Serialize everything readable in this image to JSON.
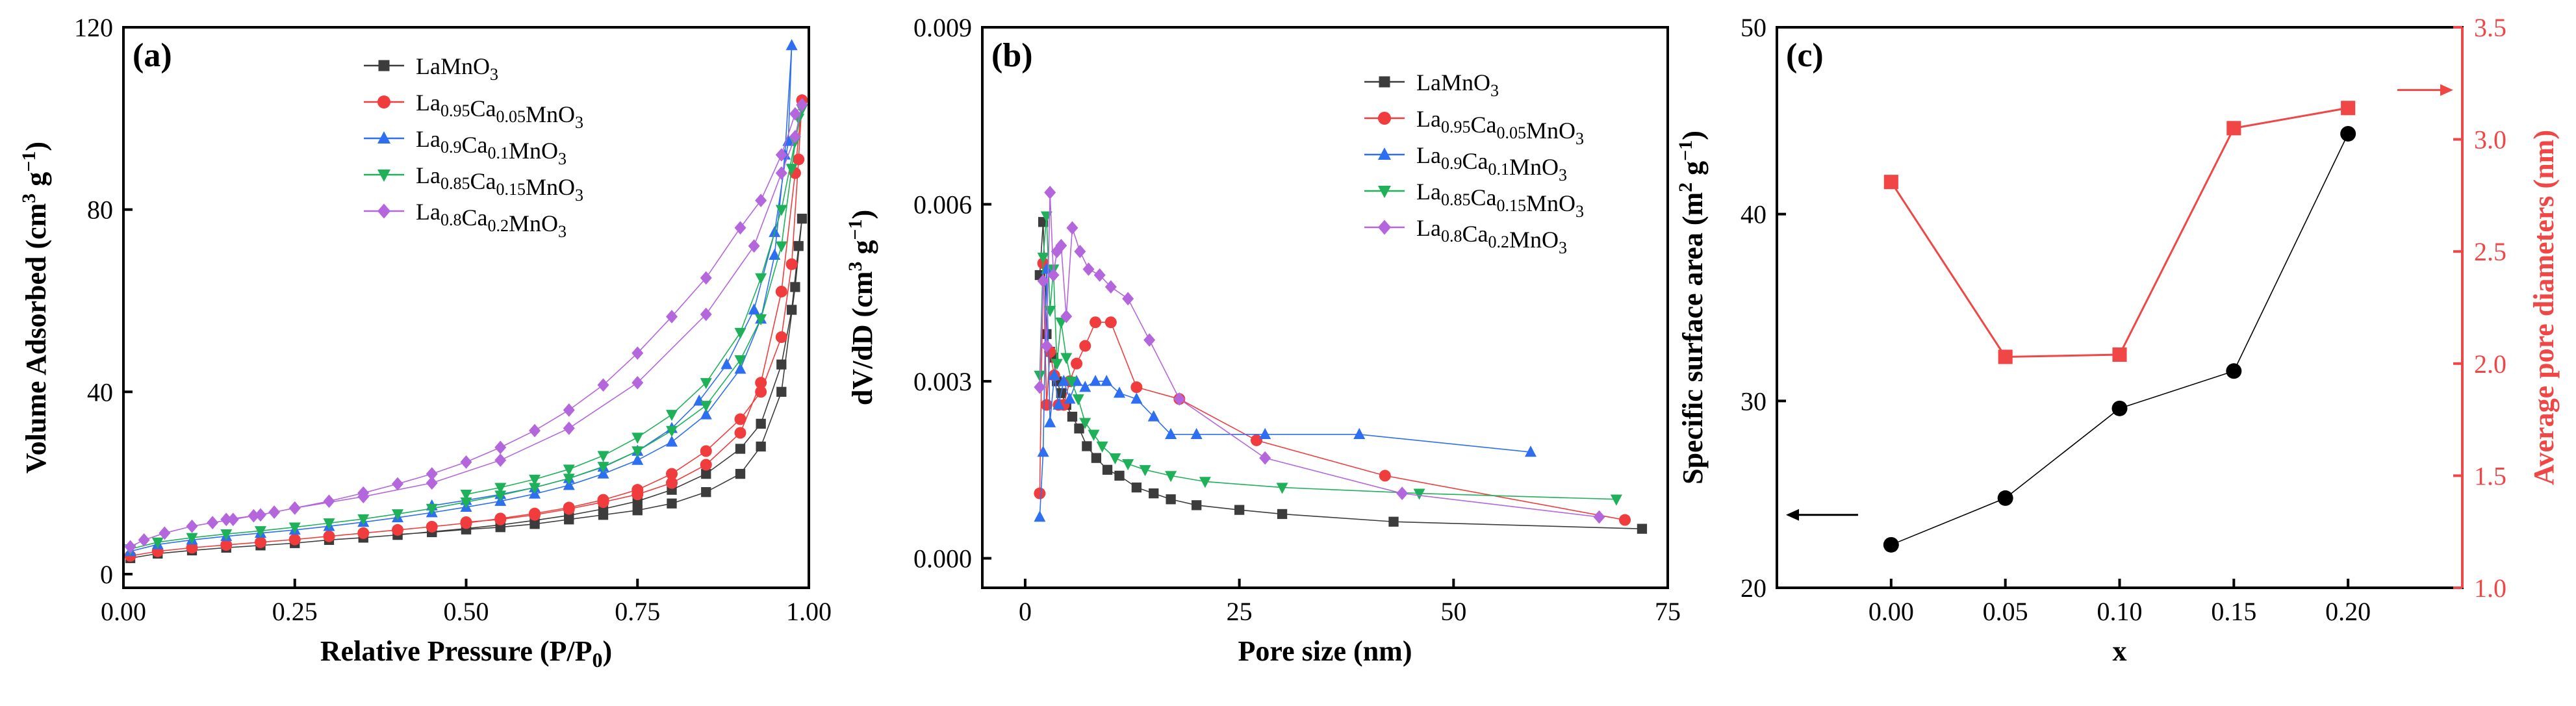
{
  "colors": {
    "black": "#000000",
    "red": "#f03c3c",
    "blue": "#2d6ff0",
    "green": "#1fb15a",
    "purple": "#b466dc",
    "gray": "#3c3c3c",
    "c_red": "#f04646"
  },
  "chart_data": [
    {
      "id": "a",
      "panel_label": "(a)",
      "type": "scatter",
      "title": "",
      "xlabel": "Relative Pressure (P/P",
      "xlabel_sub": "0",
      "xlabel_end": ")",
      "ylabel": "Volume Adsorbed (cm",
      "ylabel_sup": "3",
      "ylabel_mid": " g",
      "ylabel_sup2": "−1",
      "ylabel_end": ")",
      "xlim": [
        0,
        1.0
      ],
      "ylim": [
        -3,
        120
      ],
      "xticks": [
        0.0,
        0.25,
        0.5,
        0.75,
        1.0
      ],
      "xtick_labels": [
        "0.00",
        "0.25",
        "0.50",
        "0.75",
        "1.00"
      ],
      "yticks": [
        0,
        40,
        80,
        120
      ],
      "ytick_labels": [
        "0",
        "40",
        "80",
        "120"
      ],
      "legend_position": "top-middle",
      "series": [
        {
          "key": "s0",
          "marker": "square",
          "color_key": "gray",
          "name": "LaMnO",
          "legend_parts": [
            [
              "LaMnO",
              ""
            ],
            [
              "3",
              "sub"
            ]
          ],
          "x": [
            0.01,
            0.05,
            0.1,
            0.15,
            0.2,
            0.25,
            0.3,
            0.35,
            0.4,
            0.45,
            0.5,
            0.55,
            0.6,
            0.65,
            0.7,
            0.75,
            0.8,
            0.85,
            0.9,
            0.93,
            0.96,
            0.975,
            0.985,
            0.99,
            0.98,
            0.96,
            0.93,
            0.9,
            0.85,
            0.8,
            0.75,
            0.7,
            0.65,
            0.6,
            0.55,
            0.5,
            0.45,
            0.4
          ],
          "y": [
            3.5,
            4.5,
            5.2,
            5.8,
            6.3,
            6.8,
            7.5,
            8,
            8.6,
            9.3,
            10,
            10.8,
            11.8,
            12.9,
            14.3,
            16,
            18.5,
            22,
            27.5,
            33,
            46,
            58,
            72,
            78,
            63,
            40,
            28,
            22,
            18,
            15.5,
            14,
            13,
            12,
            11,
            10.3,
            9.8,
            9.2,
            8.7
          ],
          "tail_marker_start": 0
        },
        {
          "key": "s1",
          "marker": "circle",
          "color_key": "red",
          "name": "La0.95Ca0.05MnO3",
          "legend_parts": [
            [
              "La",
              ""
            ],
            [
              "0.95",
              "sub"
            ],
            [
              "Ca",
              ""
            ],
            [
              "0.05",
              "sub"
            ],
            [
              "MnO",
              ""
            ],
            [
              "3",
              "sub"
            ]
          ],
          "x": [
            0.01,
            0.05,
            0.1,
            0.15,
            0.2,
            0.25,
            0.3,
            0.35,
            0.4,
            0.45,
            0.5,
            0.55,
            0.6,
            0.65,
            0.7,
            0.75,
            0.8,
            0.85,
            0.9,
            0.93,
            0.96,
            0.975,
            0.985,
            0.99,
            0.98,
            0.96,
            0.93,
            0.9,
            0.85,
            0.8,
            0.75,
            0.7,
            0.65,
            0.6,
            0.55,
            0.5
          ],
          "y": [
            4,
            5,
            5.8,
            6.4,
            7,
            7.6,
            8.3,
            9,
            9.7,
            10.4,
            11.2,
            12.2,
            13.3,
            14.6,
            16.3,
            18.5,
            22,
            27,
            34,
            40,
            52,
            68,
            91,
            104,
            88,
            62,
            42,
            31,
            24,
            20,
            17.5,
            15.8,
            14.3,
            13,
            12,
            11.4
          ]
        },
        {
          "key": "s2",
          "marker": "triangle-up",
          "color_key": "blue",
          "name": "La0.9Ca0.1MnO3",
          "legend_parts": [
            [
              "La",
              ""
            ],
            [
              "0.9",
              "sub"
            ],
            [
              "Ca",
              ""
            ],
            [
              "0.1",
              "sub"
            ],
            [
              "MnO",
              ""
            ],
            [
              "3",
              "sub"
            ]
          ],
          "x": [
            0.01,
            0.05,
            0.1,
            0.15,
            0.2,
            0.25,
            0.3,
            0.35,
            0.4,
            0.45,
            0.5,
            0.55,
            0.6,
            0.65,
            0.7,
            0.75,
            0.8,
            0.85,
            0.9,
            0.93,
            0.95,
            0.965,
            0.975,
            0.97,
            0.95,
            0.92,
            0.88,
            0.84,
            0.8,
            0.75,
            0.7,
            0.65,
            0.6,
            0.55,
            0.5,
            0.45
          ],
          "y": [
            5,
            6.5,
            7.5,
            8.3,
            9,
            9.7,
            10.5,
            11.4,
            12.4,
            13.5,
            14.7,
            16,
            17.6,
            19.5,
            22,
            25,
            29,
            35,
            45,
            56,
            70,
            92,
            116,
            95,
            75,
            58,
            46,
            38,
            32,
            27,
            23.5,
            21,
            19,
            17.5,
            16.2,
            15
          ]
        },
        {
          "key": "s3",
          "marker": "triangle-down",
          "color_key": "green",
          "name": "La0.85Ca0.15MnO3",
          "legend_parts": [
            [
              "La",
              ""
            ],
            [
              "0.85",
              "sub"
            ],
            [
              "Ca",
              ""
            ],
            [
              "0.15",
              "sub"
            ],
            [
              "MnO",
              ""
            ],
            [
              "3",
              "sub"
            ]
          ],
          "x": [
            0.01,
            0.05,
            0.1,
            0.15,
            0.2,
            0.25,
            0.3,
            0.35,
            0.4,
            0.45,
            0.5,
            0.55,
            0.6,
            0.65,
            0.7,
            0.75,
            0.8,
            0.85,
            0.9,
            0.93,
            0.96,
            0.975,
            0.985,
            0.99,
            0.98,
            0.96,
            0.93,
            0.9,
            0.85,
            0.8,
            0.75,
            0.7,
            0.65,
            0.6,
            0.55,
            0.5
          ],
          "y": [
            5.5,
            7,
            8,
            8.8,
            9.5,
            10.3,
            11.2,
            12.1,
            13.2,
            14.4,
            15.8,
            17.3,
            19,
            21,
            23.6,
            27,
            31.5,
            37,
            47,
            56,
            72,
            89,
            100,
            102,
            95,
            80,
            65,
            53,
            42,
            35,
            30,
            26,
            23,
            20.8,
            19,
            17.5
          ]
        },
        {
          "key": "s4",
          "marker": "diamond",
          "color_key": "purple",
          "name": "La0.8Ca0.2MnO3",
          "legend_parts": [
            [
              "La",
              ""
            ],
            [
              "0.8",
              "sub"
            ],
            [
              "Ca",
              ""
            ],
            [
              "0.2",
              "sub"
            ],
            [
              "MnO",
              ""
            ],
            [
              "3",
              "sub"
            ]
          ],
          "x": [
            0.01,
            0.03,
            0.06,
            0.1,
            0.13,
            0.16,
            0.19,
            0.22,
            0.25,
            0.3,
            0.35,
            0.4,
            0.45,
            0.5,
            0.55,
            0.6,
            0.65,
            0.7,
            0.75,
            0.8,
            0.85,
            0.9,
            0.93,
            0.96,
            0.98,
            0.99,
            0.98,
            0.96,
            0.92,
            0.85,
            0.75,
            0.65,
            0.55,
            0.45,
            0.35,
            0.25,
            0.2,
            0.15
          ],
          "y": [
            6,
            7.5,
            9,
            10.5,
            11.3,
            12,
            12.8,
            13.6,
            14.5,
            16,
            17.8,
            19.8,
            22,
            24.6,
            27.8,
            31.5,
            36,
            41.5,
            48.5,
            56.5,
            65,
            76,
            82,
            92,
            101,
            103,
            96,
            88,
            72,
            57,
            42,
            32,
            25,
            20,
            17,
            14.5,
            13,
            12
          ]
        }
      ]
    },
    {
      "id": "b",
      "panel_label": "(b)",
      "type": "line",
      "title": "",
      "xlabel": "Pore size (nm)",
      "ylabel": "dV/dD (cm",
      "ylabel_sup": "3",
      "ylabel_mid": " g",
      "ylabel_sup2": "−1",
      "ylabel_end": ")",
      "xlim": [
        -5,
        75
      ],
      "ylim": [
        -0.0005,
        0.009
      ],
      "xticks": [
        0,
        25,
        50,
        75
      ],
      "xtick_labels": [
        "0",
        "25",
        "50",
        "75"
      ],
      "yticks": [
        0,
        0.003,
        0.006,
        0.009
      ],
      "ytick_labels": [
        "0.000",
        "0.003",
        "0.006",
        "0.009"
      ],
      "legend_position": "top-right",
      "series": [
        {
          "key": "s0",
          "marker": "square",
          "color_key": "gray",
          "name": "LaMnO3",
          "legend_parts": [
            [
              "LaMnO",
              ""
            ],
            [
              "3",
              "sub"
            ]
          ],
          "x": [
            1.7,
            2.1,
            2.5,
            2.9,
            3.3,
            3.7,
            4.2,
            4.8,
            5.5,
            6.3,
            7.2,
            8.3,
            9.6,
            11,
            13,
            15,
            17,
            20,
            25,
            30,
            43,
            72
          ],
          "y": [
            0.0048,
            0.0057,
            0.0038,
            0.0035,
            0.0034,
            0.003,
            0.0028,
            0.0026,
            0.0024,
            0.0022,
            0.0019,
            0.0017,
            0.0015,
            0.0014,
            0.0012,
            0.0011,
            0.001,
            0.0009,
            0.00082,
            0.00075,
            0.00062,
            0.0005
          ]
        },
        {
          "key": "s1",
          "marker": "circle",
          "color_key": "red",
          "name": "La0.95Ca0.05MnO3",
          "legend_parts": [
            [
              "La",
              ""
            ],
            [
              "0.95",
              "sub"
            ],
            [
              "Ca",
              ""
            ],
            [
              "0.05",
              "sub"
            ],
            [
              "MnO",
              ""
            ],
            [
              "3",
              "sub"
            ]
          ],
          "x": [
            1.7,
            2.1,
            2.5,
            2.9,
            3.4,
            3.9,
            4.5,
            5.2,
            6,
            7,
            8.2,
            10,
            13,
            18,
            27,
            42,
            70
          ],
          "y": [
            0.0011,
            0.005,
            0.0026,
            0.0035,
            0.0031,
            0.0026,
            0.0026,
            0.003,
            0.0033,
            0.0036,
            0.004,
            0.004,
            0.0029,
            0.0027,
            0.002,
            0.0014,
            0.00065
          ]
        },
        {
          "key": "s2",
          "marker": "triangle-up",
          "color_key": "blue",
          "name": "La0.9Ca0.1MnO3",
          "legend_parts": [
            [
              "La",
              ""
            ],
            [
              "0.9",
              "sub"
            ],
            [
              "Ca",
              ""
            ],
            [
              "0.1",
              "sub"
            ],
            [
              "MnO",
              ""
            ],
            [
              "3",
              "sub"
            ]
          ],
          "x": [
            1.7,
            2.1,
            2.5,
            2.9,
            3.4,
            3.9,
            4.5,
            5.2,
            6,
            7,
            8.2,
            9.5,
            11,
            13,
            15,
            17,
            20,
            28,
            39,
            59
          ],
          "y": [
            0.0007,
            0.0018,
            0.0049,
            0.0023,
            0.0031,
            0.0026,
            0.003,
            0.0027,
            0.003,
            0.0029,
            0.003,
            0.003,
            0.0028,
            0.0027,
            0.0024,
            0.0021,
            0.0021,
            0.0021,
            0.0021,
            0.0018
          ]
        },
        {
          "key": "s3",
          "marker": "triangle-down",
          "color_key": "green",
          "name": "La0.85Ca0.15MnO3",
          "legend_parts": [
            [
              "La",
              ""
            ],
            [
              "0.85",
              "sub"
            ],
            [
              "Ca",
              ""
            ],
            [
              "0.15",
              "sub"
            ],
            [
              "MnO",
              ""
            ],
            [
              "3",
              "sub"
            ]
          ],
          "x": [
            1.7,
            2.1,
            2.5,
            2.9,
            3.3,
            3.7,
            4.2,
            4.8,
            5.4,
            6.2,
            7,
            8,
            9,
            10.5,
            12,
            14,
            17,
            21,
            30,
            46,
            69
          ],
          "y": [
            0.0031,
            0.0051,
            0.0058,
            0.0042,
            0.0049,
            0.0033,
            0.004,
            0.0034,
            0.003,
            0.0027,
            0.0023,
            0.0021,
            0.0019,
            0.0017,
            0.0016,
            0.0015,
            0.0014,
            0.0013,
            0.0012,
            0.0011,
            0.001
          ]
        },
        {
          "key": "s4",
          "marker": "diamond",
          "color_key": "purple",
          "name": "La0.8Ca0.2MnO3",
          "legend_parts": [
            [
              "La",
              ""
            ],
            [
              "0.8",
              "sub"
            ],
            [
              "Ca",
              ""
            ],
            [
              "0.2",
              "sub"
            ],
            [
              "MnO",
              ""
            ],
            [
              "3",
              "sub"
            ]
          ],
          "x": [
            1.7,
            2.1,
            2.5,
            2.9,
            3.3,
            3.7,
            4.2,
            4.8,
            5.5,
            6.4,
            7.4,
            8.7,
            10,
            12,
            14.5,
            18,
            28,
            44,
            67
          ],
          "y": [
            0.0029,
            0.0047,
            0.0036,
            0.0062,
            0.0048,
            0.0052,
            0.0053,
            0.0041,
            0.0056,
            0.0052,
            0.0049,
            0.0048,
            0.0046,
            0.0044,
            0.0037,
            0.0027,
            0.0017,
            0.0011,
            0.0007
          ]
        }
      ]
    },
    {
      "id": "c",
      "panel_label": "(c)",
      "type": "line",
      "title": "",
      "xlabel": "x",
      "ylabel": "Specific surface area (m",
      "ylabel_sup": "2",
      "ylabel_mid": " g",
      "ylabel_sup2": "−1",
      "ylabel_end": ")",
      "ylabel_right": "Average pore diameters (nm)",
      "xlim": [
        -0.05,
        0.25
      ],
      "ylim": [
        20,
        50
      ],
      "ylim_right": [
        1.0,
        3.5
      ],
      "xticks": [
        0.0,
        0.05,
        0.1,
        0.15,
        0.2
      ],
      "xtick_labels": [
        "0.00",
        "0.05",
        "0.10",
        "0.15",
        "0.20"
      ],
      "yticks": [
        20,
        30,
        40,
        50
      ],
      "ytick_labels": [
        "20",
        "30",
        "40",
        "50"
      ],
      "yticks_right": [
        1.0,
        1.5,
        2.0,
        2.5,
        3.0,
        3.5
      ],
      "ytick_labels_right": [
        "1.0",
        "1.5",
        "2.0",
        "2.5",
        "3.0",
        "3.5"
      ],
      "series": [
        {
          "key": "surface",
          "marker": "circle",
          "color_key": "black",
          "name": "Specific surface area",
          "axis": "left",
          "x": [
            0.0,
            0.05,
            0.1,
            0.15,
            0.2
          ],
          "y": [
            22.3,
            24.8,
            29.6,
            31.6,
            44.3
          ]
        },
        {
          "key": "pore",
          "marker": "square",
          "color_key": "c_red",
          "name": "Average pore diameters",
          "axis": "right",
          "x": [
            0.0,
            0.05,
            0.1,
            0.15,
            0.2
          ],
          "y": [
            2.81,
            2.03,
            2.04,
            3.05,
            3.14
          ]
        }
      ],
      "annotations": [
        {
          "type": "arrow",
          "points_to": "left-axis",
          "series": "surface",
          "at_y": 23.9
        },
        {
          "type": "arrow",
          "points_to": "right-axis",
          "series": "pore",
          "at_y_right": 3.22
        }
      ]
    }
  ]
}
